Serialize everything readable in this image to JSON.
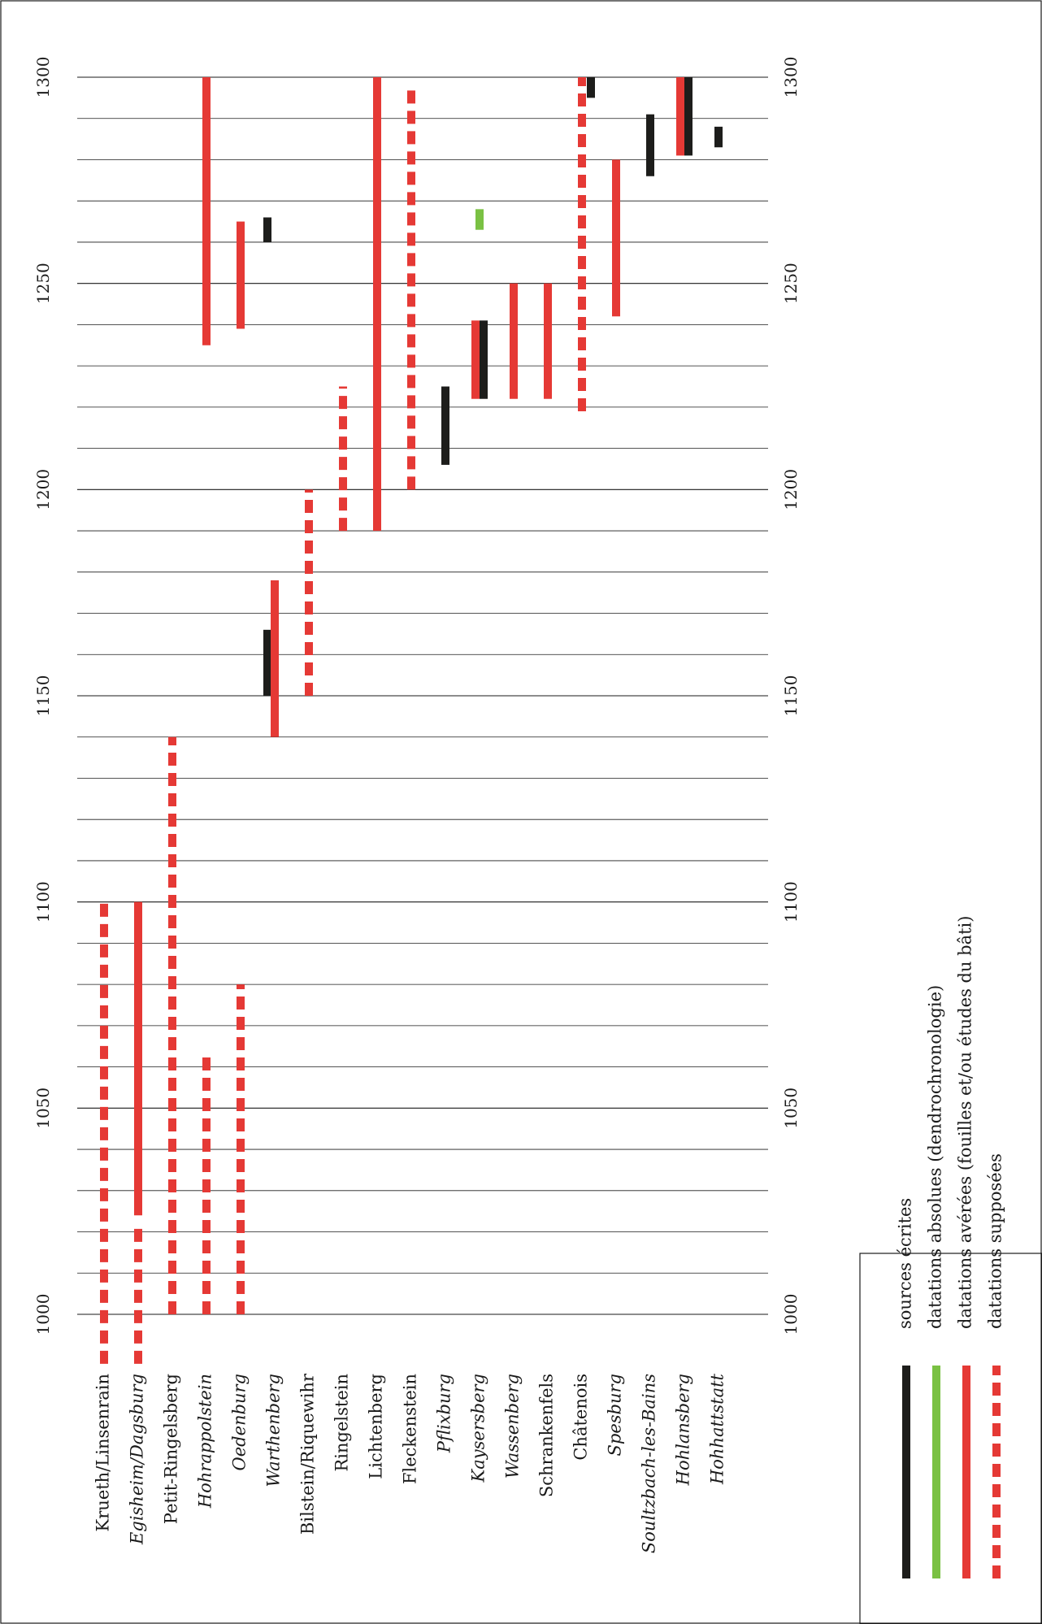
{
  "chart_data": {
    "type": "range-bar",
    "orientation": "rotated-90",
    "year_axis": {
      "min": 1000,
      "max": 1300,
      "tick_labels": [
        "1000",
        "1050",
        "1100",
        "1150",
        "1200",
        "1250",
        "1300"
      ],
      "gridline_step": 10
    },
    "categories": [
      {
        "label": "Krueth/Linsenrain",
        "italic": false
      },
      {
        "label": "Egisheim/Dagsburg",
        "italic": true
      },
      {
        "label": "Petit-Ringelsberg",
        "italic": false
      },
      {
        "label": "Hohrappolstein",
        "italic": true
      },
      {
        "label": "Oedenburg",
        "italic": true
      },
      {
        "label": "Warthenberg",
        "italic": true
      },
      {
        "label": "Bilstein/Riquewihr",
        "italic": false
      },
      {
        "label": "Ringelstein",
        "italic": false
      },
      {
        "label": "Lichtenberg",
        "italic": false
      },
      {
        "label": "Fleckenstein",
        "italic": false
      },
      {
        "label": "Pflixburg",
        "italic": true
      },
      {
        "label": "Kaysersberg",
        "italic": true
      },
      {
        "label": "Wassenberg",
        "italic": true
      },
      {
        "label": "Schrankenfels",
        "italic": false
      },
      {
        "label": "Châtenois",
        "italic": false
      },
      {
        "label": "Spesburg",
        "italic": true
      },
      {
        "label": "Soultzbach-les-Bains",
        "italic": true
      },
      {
        "label": "Hohlansberg",
        "italic": true
      },
      {
        "label": "Hohhattstatt",
        "italic": true
      }
    ],
    "ranges": [
      {
        "cat": 0,
        "type": "supposed",
        "start": 988,
        "end": 1101
      },
      {
        "cat": 1,
        "type": "attested",
        "start": 1024,
        "end": 1100
      },
      {
        "cat": 1,
        "type": "supposed",
        "start": 988,
        "end": 1022
      },
      {
        "cat": 2,
        "type": "supposed",
        "start": 1000,
        "end": 1140
      },
      {
        "cat": 3,
        "type": "supposed",
        "start": 1000,
        "end": 1063
      },
      {
        "cat": 3,
        "type": "attested",
        "start": 1235,
        "end": 1300
      },
      {
        "cat": 4,
        "type": "supposed",
        "start": 1000,
        "end": 1080
      },
      {
        "cat": 4,
        "type": "attested",
        "start": 1239,
        "end": 1265
      },
      {
        "cat": 5,
        "type": "written",
        "start": 1150,
        "end": 1166
      },
      {
        "cat": 5,
        "type": "attested",
        "start": 1140,
        "end": 1178
      },
      {
        "cat": 5,
        "type": "written",
        "start": 1260,
        "end": 1266
      },
      {
        "cat": 6,
        "type": "supposed",
        "start": 1150,
        "end": 1200
      },
      {
        "cat": 7,
        "type": "supposed",
        "start": 1190,
        "end": 1225
      },
      {
        "cat": 8,
        "type": "attested",
        "start": 1190,
        "end": 1300
      },
      {
        "cat": 9,
        "type": "supposed",
        "start": 1200,
        "end": 1298
      },
      {
        "cat": 10,
        "type": "written",
        "start": 1206,
        "end": 1225
      },
      {
        "cat": 11,
        "type": "absolute",
        "start": 1263,
        "end": 1268
      },
      {
        "cat": 11,
        "type": "attested",
        "start": 1222,
        "end": 1241
      },
      {
        "cat": 11,
        "type": "written",
        "start": 1222,
        "end": 1241
      },
      {
        "cat": 12,
        "type": "attested",
        "start": 1222,
        "end": 1250
      },
      {
        "cat": 13,
        "type": "attested",
        "start": 1222,
        "end": 1250
      },
      {
        "cat": 14,
        "type": "supposed",
        "start": 1219,
        "end": 1300
      },
      {
        "cat": 14,
        "type": "written",
        "start": 1295,
        "end": 1300
      },
      {
        "cat": 15,
        "type": "attested",
        "start": 1242,
        "end": 1280
      },
      {
        "cat": 16,
        "type": "written",
        "start": 1276,
        "end": 1291
      },
      {
        "cat": 17,
        "type": "attested",
        "start": 1281,
        "end": 1300
      },
      {
        "cat": 17,
        "type": "written",
        "start": 1281,
        "end": 1300
      },
      {
        "cat": 18,
        "type": "written",
        "start": 1283,
        "end": 1288
      }
    ],
    "legend": [
      {
        "type": "written",
        "label": "sources écrites"
      },
      {
        "type": "absolute",
        "label": "datations absolues (dendrochronologie)"
      },
      {
        "type": "attested",
        "label": "datations avérées (fouilles et/ou études du bâti)"
      },
      {
        "type": "supposed",
        "label": "datations supposées"
      }
    ],
    "colors": {
      "written": "#1d1d1b",
      "absolute": "#7ac143",
      "attested": "#e53935",
      "supposed": "#e53935"
    },
    "grid": true
  }
}
